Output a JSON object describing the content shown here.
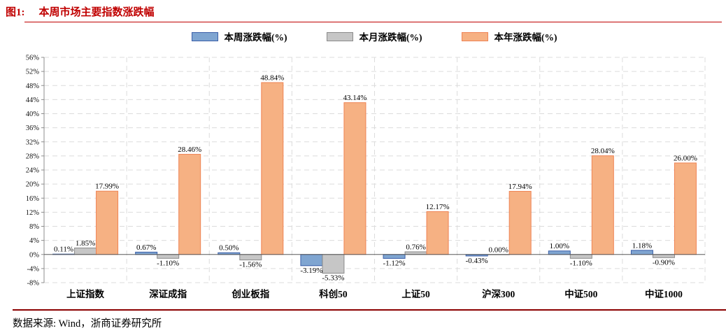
{
  "title": {
    "prefix": "图1:",
    "text": "本周市场主要指数涨跌幅"
  },
  "footer": {
    "text": "数据来源: Wind，浙商证券研究所"
  },
  "colors": {
    "title_red": "#C00000",
    "footer_rule": "#8B0000",
    "gridline": "#DCDCDC",
    "axis": "#595959",
    "tick": "#8C8C8C"
  },
  "chart_data": {
    "type": "bar",
    "title": "本周市场主要指数涨跌幅",
    "categories": [
      "上证指数",
      "深证成指",
      "创业板指",
      "科创50",
      "上证50",
      "沪深300",
      "中证500",
      "中证1000"
    ],
    "series": [
      {
        "name": "本周涨跌幅(%)",
        "fill": "#7FA5D1",
        "border": "#3A5EA8",
        "values": [
          0.11,
          0.67,
          0.5,
          -3.19,
          -1.12,
          -0.43,
          1.0,
          1.18
        ]
      },
      {
        "name": "本月涨跌幅(%)",
        "fill": "#C6C6C6",
        "border": "#8A8A8A",
        "values": [
          1.85,
          -1.1,
          -1.56,
          -5.33,
          0.76,
          0.0,
          -1.1,
          -0.9
        ]
      },
      {
        "name": "本年涨跌幅(%)",
        "fill": "#F6B183",
        "border": "#EF8354",
        "values": [
          17.99,
          28.46,
          48.84,
          43.14,
          12.17,
          17.94,
          28.04,
          26.0
        ]
      }
    ],
    "xlabel": "",
    "ylabel": "",
    "ylim": [
      -8,
      56
    ],
    "ytick_step": 4,
    "ytick_suffix": "%",
    "value_label_decimals": 2,
    "value_label_suffix": "%",
    "grid": "dashed",
    "legend_position": "top"
  }
}
